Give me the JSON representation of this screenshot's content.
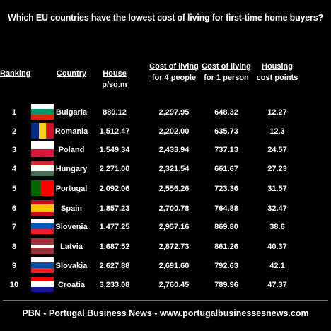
{
  "title": "Which EU countries have the lowest cost of living for first-time home buyers?",
  "table": {
    "header": [
      "Ranking",
      "Country",
      "House p/sq.m",
      "Cost of living for 4 people",
      "Cost of living for 1 person",
      "Housing cost points"
    ],
    "rows": [
      [
        "1",
        "Bulgaria",
        "889.12",
        "2,297.95",
        "648.32",
        "12.27"
      ],
      [
        "2",
        "Romania",
        "1,512.47",
        "2,202.00",
        "635.73",
        "12.3"
      ],
      [
        "3",
        "Poland",
        "1,549.34",
        "2,433.94",
        "737.13",
        "24.57"
      ],
      [
        "4",
        "Hungary",
        "2,271.00",
        "2,321.54",
        "661.67",
        "27.23"
      ],
      [
        "5",
        "Portugal",
        "2,092.06",
        "2,556.26",
        "723.36",
        "31.57"
      ],
      [
        "6",
        "Spain",
        "1,857.23",
        "2,700.78",
        "764.88",
        "32.47"
      ],
      [
        "7",
        "Slovenia",
        "1,477.25",
        "2,957.16",
        "869.80",
        "38.6"
      ],
      [
        "8",
        "Latvia",
        "1,687.52",
        "2,872.73",
        "861.26",
        "40.37"
      ],
      [
        "9",
        "Slovakia",
        "2,627.88",
        "2,691.60",
        "792.63",
        "42.1"
      ],
      [
        "10",
        "Croatia",
        "3,233.08",
        "2,760.45",
        "789.96",
        "47.37"
      ]
    ]
  },
  "footer": "PBN - Portugal Business News - www.portugalbusinessesnews.com"
}
